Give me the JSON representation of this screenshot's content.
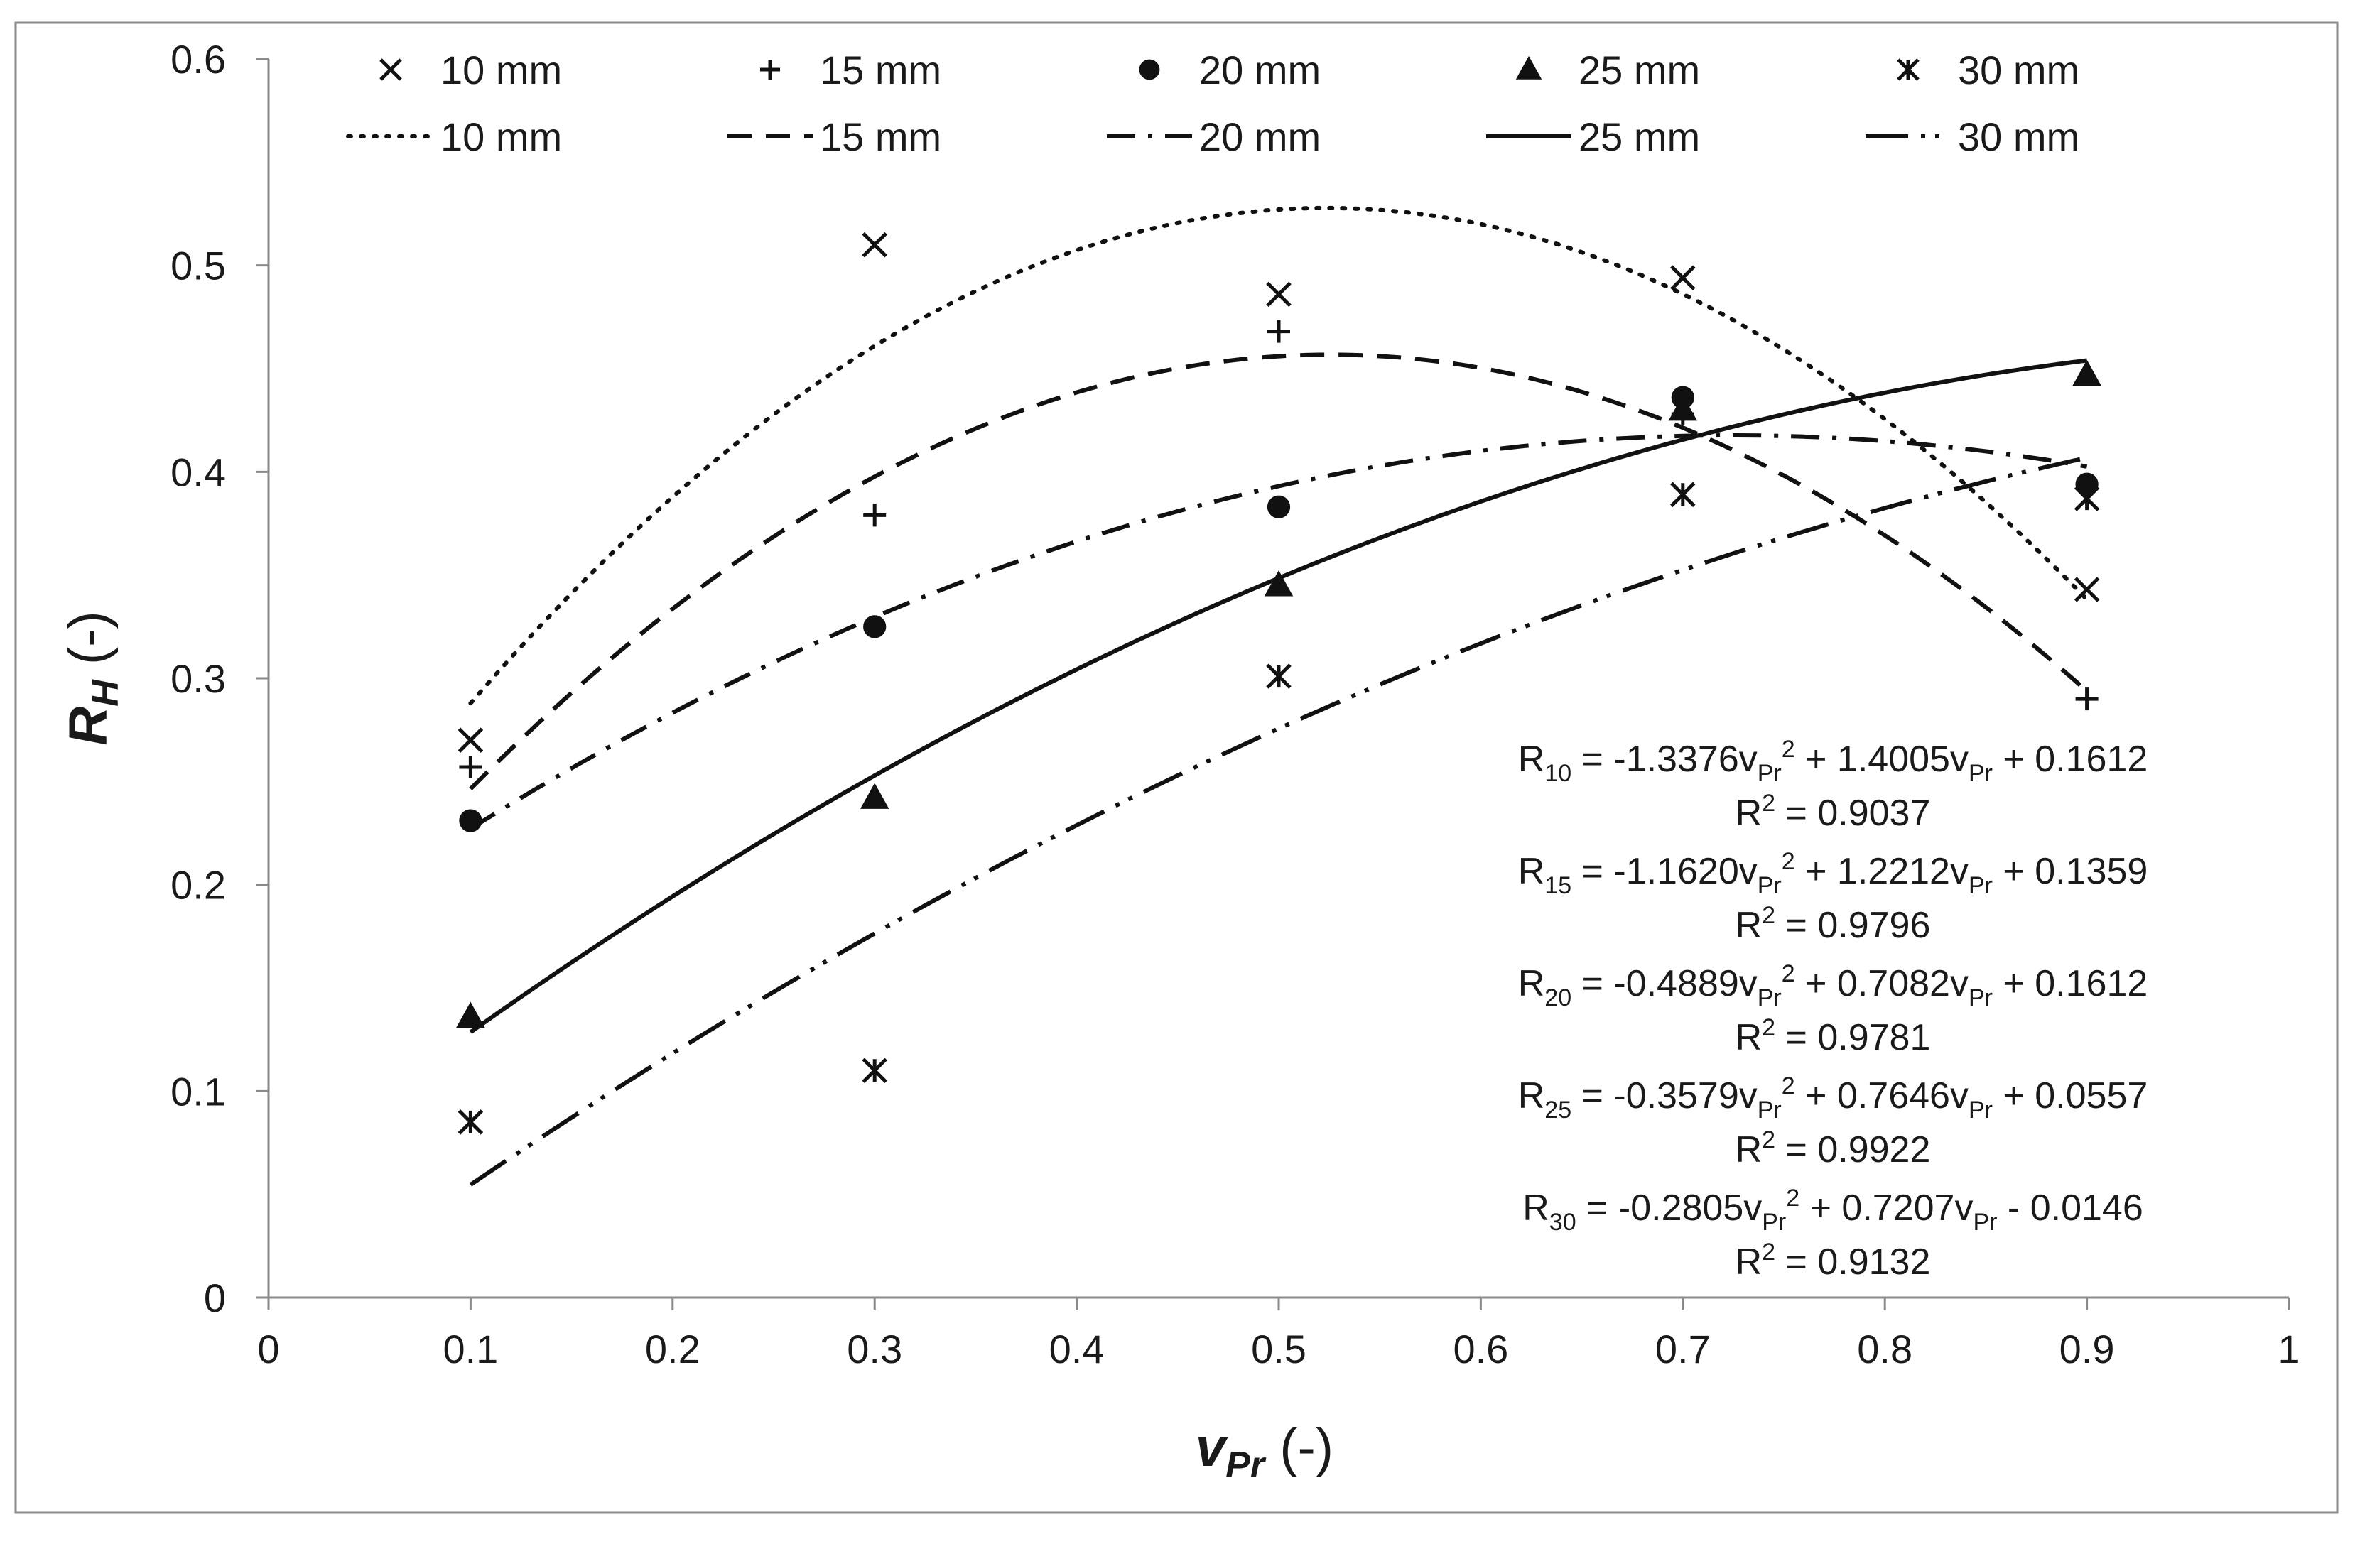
{
  "chart_data": {
    "type": "scatter",
    "title": "",
    "xlabel": {
      "main": "v",
      "sub": "Pr",
      "suffix": " (-)"
    },
    "ylabel": {
      "main": "R",
      "sub": "H",
      "suffix": " (-)"
    },
    "xlim": [
      0,
      1
    ],
    "ylim": [
      0,
      0.6
    ],
    "x_ticks": [
      "0",
      "0.1",
      "0.2",
      "0.3",
      "0.4",
      "0.5",
      "0.6",
      "0.7",
      "0.8",
      "0.9",
      "1"
    ],
    "y_ticks": [
      "0",
      "0.1",
      "0.2",
      "0.3",
      "0.4",
      "0.5",
      "0.6"
    ],
    "grid": false,
    "legend_position": "top",
    "x": [
      0.1,
      0.3,
      0.5,
      0.7,
      0.9
    ],
    "series": [
      {
        "name": "10 mm",
        "marker": "x",
        "line": "dotted",
        "values": [
          0.27,
          0.51,
          0.486,
          0.494,
          0.343
        ],
        "fit": {
          "a": -1.3376,
          "b": 1.4005,
          "c": 0.1612
        },
        "equation": {
          "lhs": "R",
          "sub": "10",
          "text": " = -1.3376v",
          "vsub": "Pr",
          "sup": "2",
          "rest": " + 1.4005v",
          "vsub2": "Pr",
          "tail": " + 0.1612"
        },
        "r2": {
          "label": "R",
          "sup": "2",
          "text": " = 0.9037"
        }
      },
      {
        "name": "15 mm",
        "marker": "plus",
        "line": "dashed",
        "values": [
          0.257,
          0.379,
          0.468,
          0.428,
          0.29
        ],
        "fit": {
          "a": -1.162,
          "b": 1.2212,
          "c": 0.1359
        },
        "equation": {
          "lhs": "R",
          "sub": "15",
          "text": " = -1.1620v",
          "vsub": "Pr",
          "sup": "2",
          "rest": " + 1.2212v",
          "vsub2": "Pr",
          "tail": " + 0.1359"
        },
        "r2": {
          "label": "R",
          "sup": "2",
          "text": " = 0.9796"
        }
      },
      {
        "name": "20 mm",
        "marker": "circle",
        "line": "dashdot",
        "values": [
          0.231,
          0.325,
          0.383,
          0.436,
          0.394
        ],
        "fit": {
          "a": -0.4889,
          "b": 0.7082,
          "c": 0.1612
        },
        "equation": {
          "lhs": "R",
          "sub": "20",
          "text": " = -0.4889v",
          "vsub": "Pr",
          "sup": "2",
          "rest": " + 0.7082v",
          "vsub2": "Pr",
          "tail": " + 0.1612"
        },
        "r2": {
          "label": "R",
          "sup": "2",
          "text": " = 0.9781"
        }
      },
      {
        "name": "25 mm",
        "marker": "triangle",
        "line": "solid",
        "values": [
          0.136,
          0.242,
          0.345,
          0.43,
          0.447
        ],
        "fit": {
          "a": -0.3579,
          "b": 0.7646,
          "c": 0.0557
        },
        "equation": {
          "lhs": "R",
          "sub": "25",
          "text": " = -0.3579v",
          "vsub": "Pr",
          "sup": "2",
          "rest": " + 0.7646v",
          "vsub2": "Pr",
          "tail": " + 0.0557"
        },
        "r2": {
          "label": "R",
          "sup": "2",
          "text": " = 0.9922"
        }
      },
      {
        "name": "30 mm",
        "marker": "asterisk",
        "line": "dashdotdot",
        "values": [
          0.085,
          0.11,
          0.301,
          0.389,
          0.387
        ],
        "fit": {
          "a": -0.2805,
          "b": 0.7207,
          "c": -0.0146
        },
        "equation": {
          "lhs": "R",
          "sub": "30",
          "text": " = -0.2805v",
          "vsub": "Pr",
          "sup": "2",
          "rest": " + 0.7207v",
          "vsub2": "Pr",
          "tail": " - 0.0146"
        },
        "r2": {
          "label": "R",
          "sup": "2",
          "text": " = 0.9132"
        }
      }
    ]
  }
}
